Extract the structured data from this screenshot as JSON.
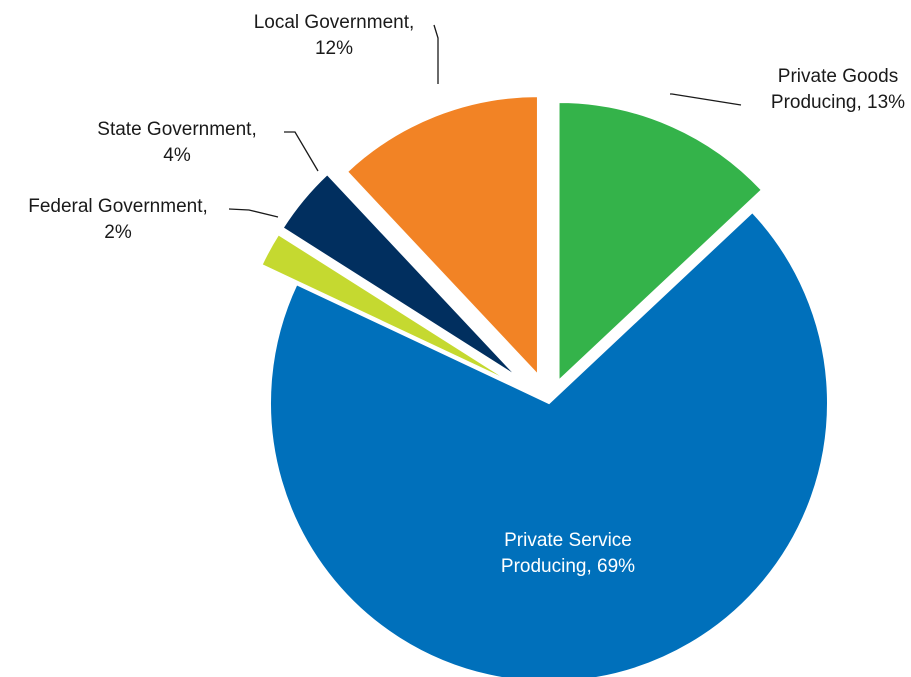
{
  "chart_data": {
    "type": "pie",
    "slices": [
      {
        "name": "Private Goods Producing",
        "value": 13,
        "label_line1": "Private Goods",
        "label_line2": "Producing, 13%",
        "color": "#34b34a"
      },
      {
        "name": "Private Service Producing",
        "value": 69,
        "label_line1": "Private Service",
        "label_line2": "Producing, 69%",
        "color": "#0070bb"
      },
      {
        "name": "Federal Government",
        "value": 2,
        "label_line1": "Federal Government,",
        "label_line2": "2%",
        "color": "#c5d930"
      },
      {
        "name": "State Government",
        "value": 4,
        "label_line1": "State Government,",
        "label_line2": "4%",
        "color": "#012f5f"
      },
      {
        "name": "Local Government",
        "value": 12,
        "label_line1": "Local Government,",
        "label_line2": "12%",
        "color": "#f28325"
      }
    ],
    "legend": "none",
    "exploded": true
  }
}
